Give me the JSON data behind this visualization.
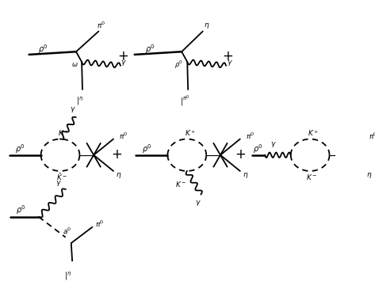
{
  "bg_color": "#ffffff",
  "line_color": "#000000",
  "text_color": "#000000",
  "fontsize": 7,
  "lw": 1.3,
  "fig_width": 4.73,
  "fig_height": 3.56
}
